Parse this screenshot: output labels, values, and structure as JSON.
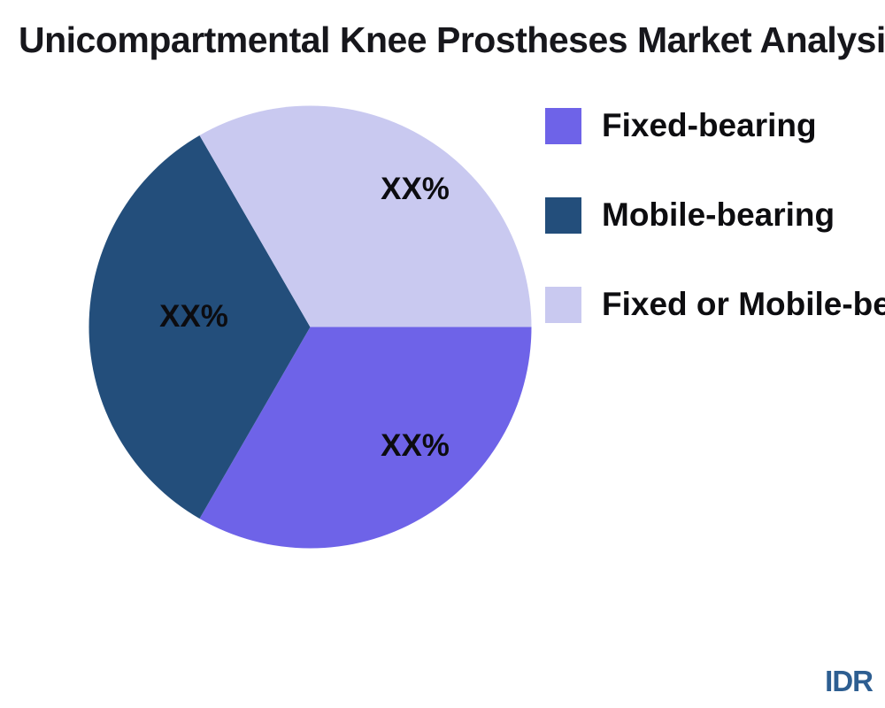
{
  "title": "Unicompartmental Knee Prostheses Market Analysis",
  "watermark": {
    "label": "IDR",
    "color": "#2d5e91"
  },
  "chart_data": {
    "type": "pie",
    "title": "Unicompartmental Knee Prostheses Market Analysis",
    "legend_position": "right",
    "start_angle": "3 o'clock, drawn clockwise",
    "note": "Slice values are placeholder 'XX%'; slices rendered as three equal thirds (120 degrees each)",
    "slices": [
      {
        "id": "fixed-bearing",
        "label": "Fixed-bearing",
        "value_label": "XX%",
        "angle_deg": 120,
        "color": "#6e63e8"
      },
      {
        "id": "mobile-bearing",
        "label": "Mobile-bearing",
        "value_label": "XX%",
        "angle_deg": 120,
        "color": "#234e7b"
      },
      {
        "id": "fixed-or-mobile-bearing",
        "label": "Fixed or Mobile-bearing",
        "value_label": "XX%",
        "angle_deg": 120,
        "color": "#c9c9f0"
      }
    ]
  }
}
